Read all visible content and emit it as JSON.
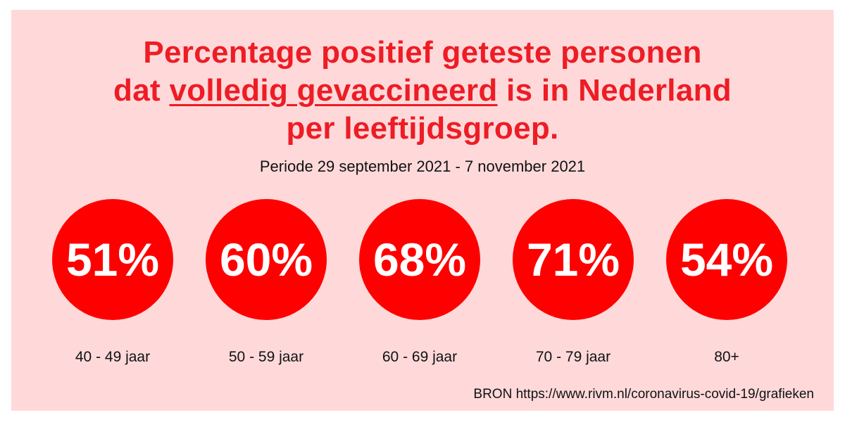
{
  "colors": {
    "background": "#ffd9da",
    "accent": "#ee1c25",
    "circle": "#ff0000",
    "value_text": "#ffffff"
  },
  "title": {
    "line1": "Percentage positief geteste personen",
    "line2_pre": "dat ",
    "line2_underlined": "volledig gevaccineerd",
    "line2_post": " is in Nederland",
    "line3": "per leeftijdsgroep."
  },
  "subtitle": "Periode 29 september 2021 - 7 november 2021",
  "source": "BRON https://www.rivm.nl/coronavirus-covid-19/grafieken",
  "chart_data": {
    "type": "table",
    "categories": [
      "40 - 49 jaar",
      "50 - 59 jaar",
      "60 - 69 jaar",
      "70 - 79 jaar",
      "80+"
    ],
    "values": [
      51,
      60,
      68,
      71,
      54
    ],
    "value_labels": [
      "51%",
      "60%",
      "68%",
      "71%",
      "54%"
    ],
    "unit": "%"
  }
}
